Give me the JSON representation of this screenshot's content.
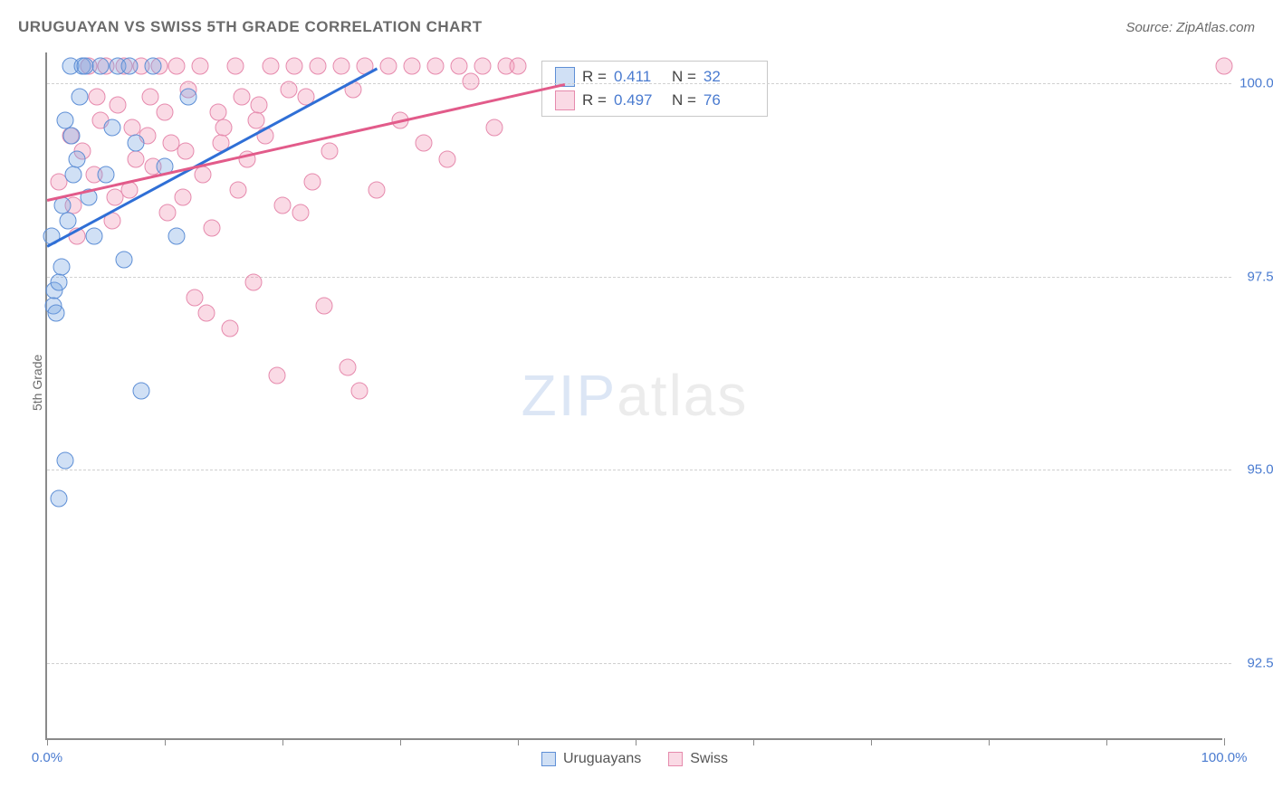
{
  "header": {
    "title": "URUGUAYAN VS SWISS 5TH GRADE CORRELATION CHART",
    "source": "Source: ZipAtlas.com"
  },
  "axes": {
    "y_title": "5th Grade",
    "x_range": [
      0,
      100
    ],
    "y_range": [
      91.5,
      100.4
    ],
    "y_ticks": [
      {
        "v": 92.5,
        "label": "92.5%"
      },
      {
        "v": 95.0,
        "label": "95.0%"
      },
      {
        "v": 97.5,
        "label": "97.5%"
      },
      {
        "v": 100.0,
        "label": "100.0%"
      }
    ],
    "x_ticks": [
      0,
      10,
      20,
      30,
      40,
      50,
      60,
      70,
      80,
      90,
      100
    ],
    "x_labels": [
      {
        "v": 0,
        "label": "0.0%"
      },
      {
        "v": 100,
        "label": "100.0%"
      }
    ]
  },
  "series": {
    "uruguayans": {
      "label": "Uruguayans",
      "fill": "rgba(120,165,225,0.35)",
      "stroke": "#5e8fd6",
      "r_value": "0.411",
      "n_value": "32",
      "trend": {
        "x1": 0,
        "y1": 97.9,
        "x2": 28,
        "y2": 100.2,
        "color": "#2f6fd6"
      },
      "points": [
        [
          0.5,
          97.1
        ],
        [
          0.6,
          97.3
        ],
        [
          0.8,
          97.0
        ],
        [
          1.0,
          97.4
        ],
        [
          1.2,
          97.6
        ],
        [
          1.5,
          99.5
        ],
        [
          1.8,
          98.2
        ],
        [
          2.0,
          100.2
        ],
        [
          2.2,
          98.8
        ],
        [
          2.5,
          99.0
        ],
        [
          3.0,
          100.2
        ],
        [
          3.2,
          100.2
        ],
        [
          1.0,
          94.6
        ],
        [
          1.5,
          95.1
        ],
        [
          4.0,
          98.0
        ],
        [
          4.5,
          100.2
        ],
        [
          5.0,
          98.8
        ],
        [
          5.5,
          99.4
        ],
        [
          6.0,
          100.2
        ],
        [
          6.5,
          97.7
        ],
        [
          7.0,
          100.2
        ],
        [
          7.5,
          99.2
        ],
        [
          8.0,
          96.0
        ],
        [
          9.0,
          100.2
        ],
        [
          10.0,
          98.9
        ],
        [
          11.0,
          98.0
        ],
        [
          12.0,
          99.8
        ],
        [
          2.8,
          99.8
        ],
        [
          3.5,
          98.5
        ],
        [
          1.3,
          98.4
        ],
        [
          0.4,
          98.0
        ],
        [
          2.1,
          99.3
        ]
      ]
    },
    "swiss": {
      "label": "Swiss",
      "fill": "rgba(240,150,180,0.35)",
      "stroke": "#e68aad",
      "r_value": "0.497",
      "n_value": "76",
      "trend": {
        "x1": 0,
        "y1": 98.5,
        "x2": 44,
        "y2": 100.0,
        "color": "#e25b8a"
      },
      "points": [
        [
          1.0,
          98.7
        ],
        [
          2.0,
          99.3
        ],
        [
          2.5,
          98.0
        ],
        [
          3.0,
          99.1
        ],
        [
          3.5,
          100.2
        ],
        [
          4.0,
          98.8
        ],
        [
          4.5,
          99.5
        ],
        [
          5.0,
          100.2
        ],
        [
          5.5,
          98.2
        ],
        [
          6.0,
          99.7
        ],
        [
          6.5,
          100.2
        ],
        [
          7.0,
          98.6
        ],
        [
          7.5,
          99.0
        ],
        [
          8.0,
          100.2
        ],
        [
          8.5,
          99.3
        ],
        [
          9.0,
          98.9
        ],
        [
          9.5,
          100.2
        ],
        [
          10.0,
          99.6
        ],
        [
          10.5,
          99.2
        ],
        [
          11.0,
          100.2
        ],
        [
          11.5,
          98.5
        ],
        [
          12.0,
          99.9
        ],
        [
          13.0,
          100.2
        ],
        [
          14.0,
          98.1
        ],
        [
          15.0,
          99.4
        ],
        [
          16.0,
          100.2
        ],
        [
          17.0,
          99.0
        ],
        [
          18.0,
          99.7
        ],
        [
          19.0,
          100.2
        ],
        [
          20.0,
          98.4
        ],
        [
          21.0,
          100.2
        ],
        [
          22.0,
          99.8
        ],
        [
          23.0,
          100.2
        ],
        [
          24.0,
          99.1
        ],
        [
          25.0,
          100.2
        ],
        [
          26.0,
          99.9
        ],
        [
          27.0,
          100.2
        ],
        [
          28.0,
          98.6
        ],
        [
          29.0,
          100.2
        ],
        [
          30.0,
          99.5
        ],
        [
          31.0,
          100.2
        ],
        [
          32.0,
          99.2
        ],
        [
          33.0,
          100.2
        ],
        [
          34.0,
          99.0
        ],
        [
          35.0,
          100.2
        ],
        [
          36.0,
          100.0
        ],
        [
          37.0,
          100.2
        ],
        [
          38.0,
          99.4
        ],
        [
          39.0,
          100.2
        ],
        [
          40.0,
          100.2
        ],
        [
          12.5,
          97.2
        ],
        [
          13.5,
          97.0
        ],
        [
          15.5,
          96.8
        ],
        [
          17.5,
          97.4
        ],
        [
          19.5,
          96.2
        ],
        [
          21.5,
          98.3
        ],
        [
          23.5,
          97.1
        ],
        [
          25.5,
          96.3
        ],
        [
          22.5,
          98.7
        ],
        [
          26.5,
          96.0
        ],
        [
          14.5,
          99.6
        ],
        [
          16.5,
          99.8
        ],
        [
          18.5,
          99.3
        ],
        [
          20.5,
          99.9
        ],
        [
          4.2,
          99.8
        ],
        [
          5.8,
          98.5
        ],
        [
          7.2,
          99.4
        ],
        [
          8.8,
          99.8
        ],
        [
          10.2,
          98.3
        ],
        [
          11.8,
          99.1
        ],
        [
          13.2,
          98.8
        ],
        [
          14.8,
          99.2
        ],
        [
          16.2,
          98.6
        ],
        [
          17.8,
          99.5
        ],
        [
          100.0,
          100.2
        ],
        [
          2.2,
          98.4
        ]
      ]
    }
  },
  "watermark": {
    "bold": "ZIP",
    "light": "atlas"
  },
  "stats_box": {
    "rows": [
      {
        "series": "uruguayans"
      },
      {
        "series": "swiss"
      }
    ],
    "r_label": "R =",
    "n_label": "N ="
  },
  "bottom_legend": [
    {
      "series": "uruguayans"
    },
    {
      "series": "swiss"
    }
  ]
}
